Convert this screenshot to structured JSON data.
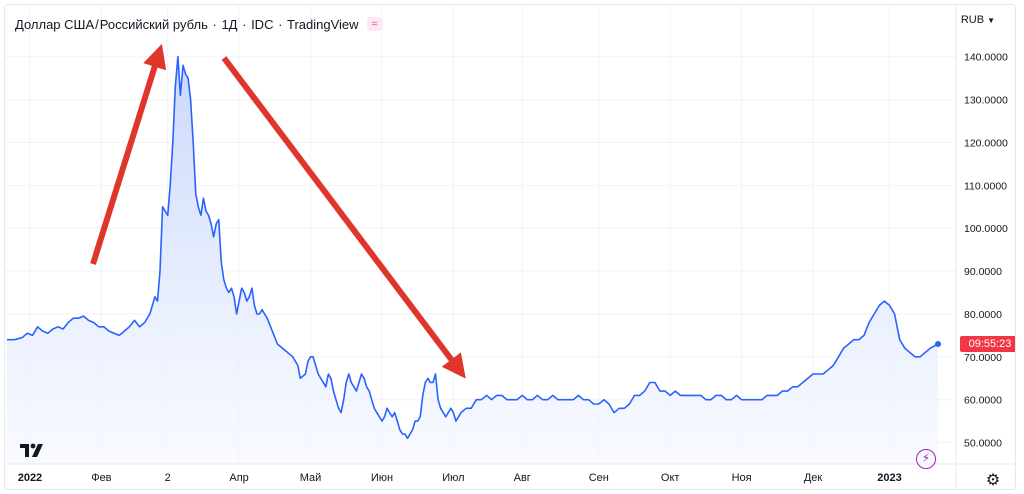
{
  "header": {
    "symbol": "Доллар США",
    "separator": " / ",
    "quote": "Российский рубль",
    "interval": "1Д",
    "source": "IDC",
    "platform": "TradingView",
    "badge": "≈"
  },
  "price_axis": {
    "currency": "RUB",
    "countdown": "09:55:23"
  },
  "colors": {
    "line": "#2962ff",
    "fill_top": "#c3d3fb",
    "fill_bottom": "#f4f7ff",
    "arrow": "#e0352b",
    "price_tag": "#f23645",
    "grid": "#f0f3fa"
  },
  "chart_data": {
    "type": "area",
    "ylim": [
      45,
      146
    ],
    "xlim": [
      0,
      365
    ],
    "y_ticks": [
      {
        "value": 50,
        "label": "50.0000"
      },
      {
        "value": 60,
        "label": "60.0000"
      },
      {
        "value": 70,
        "label": "70.0000"
      },
      {
        "value": 80,
        "label": "80.0000"
      },
      {
        "value": 90,
        "label": "90.0000"
      },
      {
        "value": 100,
        "label": "100.0000"
      },
      {
        "value": 110,
        "label": "110.0000"
      },
      {
        "value": 120,
        "label": "120.0000"
      },
      {
        "value": 130,
        "label": "130.0000"
      },
      {
        "value": 140,
        "label": "140.0000"
      }
    ],
    "x_ticks": [
      {
        "day": 9,
        "label": "2022",
        "bold": true
      },
      {
        "day": 37,
        "label": "Фев",
        "bold": false
      },
      {
        "day": 63,
        "label": "2",
        "bold": false
      },
      {
        "day": 91,
        "label": "Апр",
        "bold": false
      },
      {
        "day": 119,
        "label": "Май",
        "bold": false
      },
      {
        "day": 147,
        "label": "Июн",
        "bold": false
      },
      {
        "day": 175,
        "label": "Июл",
        "bold": false
      },
      {
        "day": 202,
        "label": "Авг",
        "bold": false
      },
      {
        "day": 232,
        "label": "Сен",
        "bold": false
      },
      {
        "day": 260,
        "label": "Окт",
        "bold": false
      },
      {
        "day": 288,
        "label": "Ноя",
        "bold": false
      },
      {
        "day": 316,
        "label": "Дек",
        "bold": false
      },
      {
        "day": 346,
        "label": "2023",
        "bold": true
      }
    ],
    "series": [
      {
        "points": [
          [
            0,
            74
          ],
          [
            3,
            74
          ],
          [
            6,
            74.5
          ],
          [
            8,
            75.5
          ],
          [
            10,
            75
          ],
          [
            12,
            77
          ],
          [
            14,
            76
          ],
          [
            16,
            75.5
          ],
          [
            18,
            76.5
          ],
          [
            20,
            77
          ],
          [
            22,
            76.5
          ],
          [
            24,
            78
          ],
          [
            26,
            79
          ],
          [
            28,
            79
          ],
          [
            30,
            79.5
          ],
          [
            32,
            78.5
          ],
          [
            34,
            78
          ],
          [
            36,
            77
          ],
          [
            38,
            77
          ],
          [
            40,
            76
          ],
          [
            42,
            75.5
          ],
          [
            44,
            75
          ],
          [
            46,
            76
          ],
          [
            48,
            77
          ],
          [
            50,
            78.5
          ],
          [
            52,
            77
          ],
          [
            54,
            78
          ],
          [
            56,
            80
          ],
          [
            57,
            82
          ],
          [
            58,
            84
          ],
          [
            59,
            83
          ],
          [
            60,
            90
          ],
          [
            61,
            105
          ],
          [
            62,
            104
          ],
          [
            63,
            103
          ],
          [
            64,
            110
          ],
          [
            65,
            120
          ],
          [
            66,
            133
          ],
          [
            67,
            140
          ],
          [
            68,
            131
          ],
          [
            69,
            138
          ],
          [
            70,
            136
          ],
          [
            71,
            135
          ],
          [
            72,
            130
          ],
          [
            73,
            120
          ],
          [
            74,
            108
          ],
          [
            75,
            105
          ],
          [
            76,
            103
          ],
          [
            77,
            107
          ],
          [
            78,
            104
          ],
          [
            79,
            103
          ],
          [
            80,
            101
          ],
          [
            81,
            98
          ],
          [
            82,
            101
          ],
          [
            83,
            102
          ],
          [
            84,
            92
          ],
          [
            85,
            88
          ],
          [
            86,
            86
          ],
          [
            87,
            85
          ],
          [
            88,
            86
          ],
          [
            89,
            84
          ],
          [
            90,
            80
          ],
          [
            91,
            83
          ],
          [
            92,
            86
          ],
          [
            93,
            85
          ],
          [
            94,
            83
          ],
          [
            95,
            84
          ],
          [
            96,
            86
          ],
          [
            97,
            82
          ],
          [
            98,
            80
          ],
          [
            99,
            80
          ],
          [
            100,
            81
          ],
          [
            101,
            80
          ],
          [
            102,
            79
          ],
          [
            104,
            76
          ],
          [
            106,
            73
          ],
          [
            108,
            72
          ],
          [
            110,
            71
          ],
          [
            112,
            70
          ],
          [
            114,
            68
          ],
          [
            115,
            65
          ],
          [
            117,
            66
          ],
          [
            118,
            69
          ],
          [
            119,
            70
          ],
          [
            120,
            70
          ],
          [
            121,
            68
          ],
          [
            122,
            66
          ],
          [
            123,
            65
          ],
          [
            124,
            64
          ],
          [
            125,
            63
          ],
          [
            126,
            66
          ],
          [
            127,
            65
          ],
          [
            128,
            62
          ],
          [
            129,
            60
          ],
          [
            130,
            58
          ],
          [
            131,
            57
          ],
          [
            132,
            60
          ],
          [
            133,
            64
          ],
          [
            134,
            66
          ],
          [
            135,
            64
          ],
          [
            136,
            63
          ],
          [
            137,
            62
          ],
          [
            138,
            64
          ],
          [
            139,
            66
          ],
          [
            140,
            65
          ],
          [
            141,
            63
          ],
          [
            142,
            62
          ],
          [
            143,
            60
          ],
          [
            144,
            58
          ],
          [
            145,
            57
          ],
          [
            146,
            56
          ],
          [
            147,
            55
          ],
          [
            148,
            56
          ],
          [
            149,
            58
          ],
          [
            150,
            57
          ],
          [
            151,
            56
          ],
          [
            152,
            57
          ],
          [
            153,
            55
          ],
          [
            154,
            53
          ],
          [
            155,
            52
          ],
          [
            156,
            52
          ],
          [
            157,
            51
          ],
          [
            158,
            52
          ],
          [
            159,
            53
          ],
          [
            160,
            55
          ],
          [
            161,
            55
          ],
          [
            162,
            56
          ],
          [
            163,
            61
          ],
          [
            164,
            64
          ],
          [
            165,
            65
          ],
          [
            166,
            64
          ],
          [
            167,
            64
          ],
          [
            168,
            66
          ],
          [
            169,
            60
          ],
          [
            170,
            58
          ],
          [
            171,
            57
          ],
          [
            172,
            56
          ],
          [
            173,
            57
          ],
          [
            174,
            58
          ],
          [
            175,
            57
          ],
          [
            176,
            55
          ],
          [
            177,
            56
          ],
          [
            178,
            57
          ],
          [
            180,
            58
          ],
          [
            182,
            58
          ],
          [
            184,
            60
          ],
          [
            186,
            60
          ],
          [
            188,
            61
          ],
          [
            190,
            60
          ],
          [
            192,
            61
          ],
          [
            194,
            61
          ],
          [
            196,
            60
          ],
          [
            198,
            60
          ],
          [
            200,
            60
          ],
          [
            202,
            61
          ],
          [
            204,
            60
          ],
          [
            206,
            60
          ],
          [
            208,
            61
          ],
          [
            210,
            60
          ],
          [
            212,
            60
          ],
          [
            214,
            61
          ],
          [
            216,
            60
          ],
          [
            218,
            60
          ],
          [
            220,
            60
          ],
          [
            222,
            60
          ],
          [
            224,
            61
          ],
          [
            226,
            60
          ],
          [
            228,
            60
          ],
          [
            230,
            59
          ],
          [
            232,
            59
          ],
          [
            234,
            60
          ],
          [
            236,
            59
          ],
          [
            238,
            57
          ],
          [
            240,
            58
          ],
          [
            242,
            58
          ],
          [
            244,
            59
          ],
          [
            246,
            61
          ],
          [
            248,
            61
          ],
          [
            250,
            62
          ],
          [
            252,
            64
          ],
          [
            254,
            64
          ],
          [
            256,
            62
          ],
          [
            258,
            62
          ],
          [
            260,
            61
          ],
          [
            262,
            62
          ],
          [
            264,
            61
          ],
          [
            266,
            61
          ],
          [
            268,
            61
          ],
          [
            270,
            61
          ],
          [
            272,
            61
          ],
          [
            274,
            60
          ],
          [
            276,
            60
          ],
          [
            278,
            61
          ],
          [
            280,
            61
          ],
          [
            282,
            60
          ],
          [
            284,
            60
          ],
          [
            286,
            61
          ],
          [
            288,
            60
          ],
          [
            290,
            60
          ],
          [
            292,
            60
          ],
          [
            294,
            60
          ],
          [
            296,
            60
          ],
          [
            298,
            61
          ],
          [
            300,
            61
          ],
          [
            302,
            61
          ],
          [
            304,
            62
          ],
          [
            306,
            62
          ],
          [
            308,
            63
          ],
          [
            310,
            63
          ],
          [
            312,
            64
          ],
          [
            314,
            65
          ],
          [
            316,
            66
          ],
          [
            318,
            66
          ],
          [
            320,
            66
          ],
          [
            322,
            67
          ],
          [
            324,
            68
          ],
          [
            326,
            70
          ],
          [
            328,
            72
          ],
          [
            330,
            73
          ],
          [
            332,
            74
          ],
          [
            334,
            74
          ],
          [
            336,
            75
          ],
          [
            338,
            78
          ],
          [
            340,
            80
          ],
          [
            342,
            82
          ],
          [
            344,
            83
          ],
          [
            346,
            82
          ],
          [
            348,
            80
          ],
          [
            350,
            74
          ],
          [
            352,
            72
          ],
          [
            354,
            71
          ],
          [
            356,
            70
          ],
          [
            358,
            70
          ],
          [
            360,
            71
          ],
          [
            362,
            72
          ],
          [
            365,
            73
          ]
        ]
      }
    ],
    "last_value": 73
  }
}
